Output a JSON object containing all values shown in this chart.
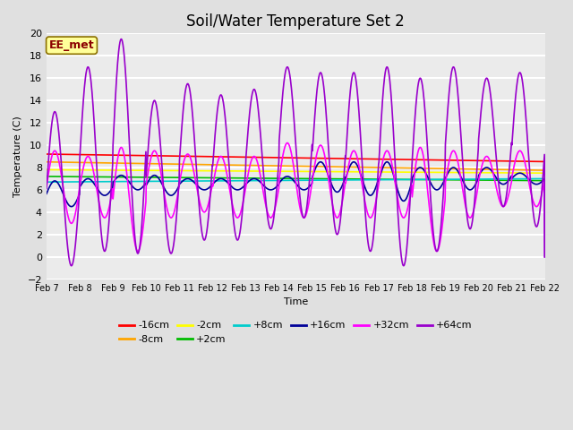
{
  "title": "Soil/Water Temperature Set 2",
  "xlabel": "Time",
  "ylabel": "Temperature (C)",
  "ylim": [
    -2,
    20
  ],
  "x_tick_labels": [
    "Feb 7",
    "Feb 8",
    "Feb 9",
    "Feb 10",
    "Feb 11",
    "Feb 12",
    "Feb 13",
    "Feb 14",
    "Feb 15",
    "Feb 16",
    "Feb 17",
    "Feb 18",
    "Feb 19",
    "Feb 20",
    "Feb 21",
    "Feb 22"
  ],
  "annotation_text": "EE_met",
  "annotation_color": "#8B0000",
  "annotation_bg": "#FFFF99",
  "series_colors": {
    "-16cm": "#FF0000",
    "-8cm": "#FFA500",
    "-2cm": "#FFFF00",
    "+2cm": "#00BB00",
    "+8cm": "#00CCCC",
    "+16cm": "#000099",
    "+32cm": "#FF00FF",
    "+64cm": "#9900CC"
  },
  "legend_order": [
    "-16cm",
    "-8cm",
    "-2cm",
    "+2cm",
    "+8cm",
    "+16cm",
    "+32cm",
    "+64cm"
  ],
  "bg_color": "#E0E0E0",
  "plot_bg": "#EBEBEB",
  "grid_color": "#FFFFFF",
  "title_fontsize": 12,
  "figwidth": 6.4,
  "figheight": 4.8,
  "dpi": 100
}
